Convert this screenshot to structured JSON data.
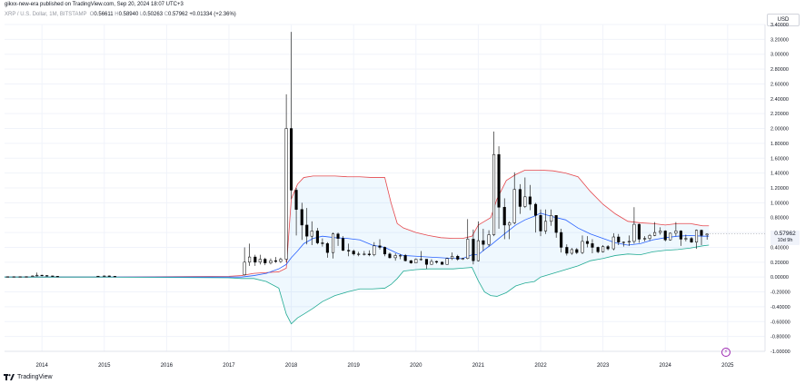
{
  "header": {
    "published": "gikxx-new-era published on TradingView.com, Sep 20, 2024 18:07 UTC+3",
    "symbol": "XRP / U.S. Dollar, 1M, BITSTAMP",
    "o_value": "0.56611",
    "h_value": "0.58940",
    "l_value": "0.50263",
    "c_value": "0.57962",
    "change": "+0.01334 (+2.36%)"
  },
  "currency_button": "USD",
  "price_label": {
    "price": "0.57962",
    "countdown": "10d 9h"
  },
  "footer": {
    "brand": "TradingView"
  },
  "icons": {
    "logo": "tradingview-logo-icon",
    "flash": "lightning-icon"
  },
  "colors": {
    "up_fill": "#ffffff",
    "down_fill": "#000000",
    "candle_border": "#000000",
    "upper_band": "#e5484d",
    "middle_band": "#2962ff",
    "lower_band": "#22ab94",
    "band_fill": "#2196f3",
    "grid": "#f0f3fa",
    "axis_text": "#131722"
  },
  "chart_data": {
    "type": "candlestick",
    "title": "",
    "xlabel": "",
    "ylabel": "",
    "ylim": [
      -1.0,
      3.4
    ],
    "y_ticks": [
      "3.40000",
      "3.20000",
      "3.00000",
      "2.80000",
      "2.60000",
      "2.40000",
      "2.20000",
      "2.00000",
      "1.80000",
      "1.60000",
      "1.40000",
      "1.20000",
      "1.00000",
      "0.80000",
      "0.60000",
      "0.40000",
      "0.20000",
      "0.00000",
      "-0.20000",
      "-0.40000",
      "-0.60000",
      "-0.80000",
      "-1.00000"
    ],
    "x_ticks": [
      "2014",
      "2015",
      "2016",
      "2017",
      "2018",
      "2019",
      "2020",
      "2021",
      "2022",
      "2023",
      "2024",
      "2025"
    ],
    "x_tick_years": [
      2014,
      2015,
      2016,
      2017,
      2018,
      2019,
      2020,
      2021,
      2022,
      2023,
      2024,
      2025
    ],
    "xlim": [
      2013.4,
      2025.6
    ],
    "grid": true,
    "indicator": "Bollinger Bands",
    "candles": [
      {
        "t": 2013.45,
        "o": 0.005,
        "h": 0.006,
        "l": 0.004,
        "c": 0.005
      },
      {
        "t": 2013.55,
        "o": 0.005,
        "h": 0.006,
        "l": 0.004,
        "c": 0.005
      },
      {
        "t": 2013.65,
        "o": 0.005,
        "h": 0.006,
        "l": 0.004,
        "c": 0.005
      },
      {
        "t": 2013.75,
        "o": 0.005,
        "h": 0.01,
        "l": 0.004,
        "c": 0.006
      },
      {
        "t": 2013.85,
        "o": 0.006,
        "h": 0.02,
        "l": 0.005,
        "c": 0.015
      },
      {
        "t": 2013.92,
        "o": 0.015,
        "h": 0.06,
        "l": 0.012,
        "c": 0.025
      },
      {
        "t": 2014.0,
        "o": 0.025,
        "h": 0.03,
        "l": 0.012,
        "c": 0.02
      },
      {
        "t": 2014.08,
        "o": 0.02,
        "h": 0.025,
        "l": 0.012,
        "c": 0.015
      },
      {
        "t": 2014.17,
        "o": 0.015,
        "h": 0.018,
        "l": 0.008,
        "c": 0.01
      },
      {
        "t": 2014.25,
        "o": 0.01,
        "h": 0.012,
        "l": 0.005,
        "c": 0.006
      },
      {
        "t": 2014.9,
        "o": 0.01,
        "h": 0.015,
        "l": 0.007,
        "c": 0.012
      },
      {
        "t": 2015.0,
        "o": 0.012,
        "h": 0.02,
        "l": 0.008,
        "c": 0.015
      },
      {
        "t": 2015.08,
        "o": 0.015,
        "h": 0.02,
        "l": 0.008,
        "c": 0.01
      },
      {
        "t": 2015.17,
        "o": 0.01,
        "h": 0.012,
        "l": 0.007,
        "c": 0.008
      },
      {
        "t": 2017.25,
        "o": 0.03,
        "h": 0.4,
        "l": 0.02,
        "c": 0.2
      },
      {
        "t": 2017.33,
        "o": 0.2,
        "h": 0.45,
        "l": 0.15,
        "c": 0.27
      },
      {
        "t": 2017.42,
        "o": 0.27,
        "h": 0.3,
        "l": 0.15,
        "c": 0.2
      },
      {
        "t": 2017.5,
        "o": 0.2,
        "h": 0.3,
        "l": 0.17,
        "c": 0.24
      },
      {
        "t": 2017.58,
        "o": 0.24,
        "h": 0.26,
        "l": 0.16,
        "c": 0.19
      },
      {
        "t": 2017.67,
        "o": 0.19,
        "h": 0.25,
        "l": 0.17,
        "c": 0.22
      },
      {
        "t": 2017.75,
        "o": 0.22,
        "h": 0.27,
        "l": 0.19,
        "c": 0.21
      },
      {
        "t": 2017.83,
        "o": 0.21,
        "h": 0.26,
        "l": 0.19,
        "c": 0.24
      },
      {
        "t": 2017.92,
        "o": 0.24,
        "h": 2.46,
        "l": 0.2,
        "c": 2.0
      },
      {
        "t": 2018.0,
        "o": 2.0,
        "h": 3.3,
        "l": 1.05,
        "c": 1.17
      },
      {
        "t": 2018.08,
        "o": 1.17,
        "h": 1.2,
        "l": 0.56,
        "c": 0.91
      },
      {
        "t": 2018.17,
        "o": 0.91,
        "h": 1.0,
        "l": 0.5,
        "c": 0.7
      },
      {
        "t": 2018.25,
        "o": 0.7,
        "h": 0.93,
        "l": 0.44,
        "c": 0.55
      },
      {
        "t": 2018.33,
        "o": 0.55,
        "h": 0.75,
        "l": 0.43,
        "c": 0.62
      },
      {
        "t": 2018.42,
        "o": 0.62,
        "h": 0.66,
        "l": 0.44,
        "c": 0.46
      },
      {
        "t": 2018.5,
        "o": 0.46,
        "h": 0.52,
        "l": 0.41,
        "c": 0.45
      },
      {
        "t": 2018.58,
        "o": 0.45,
        "h": 0.47,
        "l": 0.26,
        "c": 0.33
      },
      {
        "t": 2018.67,
        "o": 0.33,
        "h": 0.6,
        "l": 0.25,
        "c": 0.58
      },
      {
        "t": 2018.75,
        "o": 0.58,
        "h": 0.6,
        "l": 0.42,
        "c": 0.52
      },
      {
        "t": 2018.83,
        "o": 0.52,
        "h": 0.55,
        "l": 0.35,
        "c": 0.36
      },
      {
        "t": 2018.92,
        "o": 0.36,
        "h": 0.45,
        "l": 0.28,
        "c": 0.35
      },
      {
        "t": 2019.0,
        "o": 0.35,
        "h": 0.37,
        "l": 0.29,
        "c": 0.31
      },
      {
        "t": 2019.08,
        "o": 0.31,
        "h": 0.34,
        "l": 0.28,
        "c": 0.31
      },
      {
        "t": 2019.17,
        "o": 0.31,
        "h": 0.35,
        "l": 0.29,
        "c": 0.31
      },
      {
        "t": 2019.25,
        "o": 0.31,
        "h": 0.36,
        "l": 0.28,
        "c": 0.3
      },
      {
        "t": 2019.33,
        "o": 0.3,
        "h": 0.47,
        "l": 0.28,
        "c": 0.42
      },
      {
        "t": 2019.42,
        "o": 0.42,
        "h": 0.51,
        "l": 0.37,
        "c": 0.4
      },
      {
        "t": 2019.5,
        "o": 0.4,
        "h": 0.41,
        "l": 0.28,
        "c": 0.31
      },
      {
        "t": 2019.58,
        "o": 0.31,
        "h": 0.33,
        "l": 0.25,
        "c": 0.26
      },
      {
        "t": 2019.67,
        "o": 0.26,
        "h": 0.32,
        "l": 0.22,
        "c": 0.29
      },
      {
        "t": 2019.75,
        "o": 0.29,
        "h": 0.31,
        "l": 0.24,
        "c": 0.29
      },
      {
        "t": 2019.83,
        "o": 0.29,
        "h": 0.31,
        "l": 0.21,
        "c": 0.22
      },
      {
        "t": 2019.92,
        "o": 0.22,
        "h": 0.23,
        "l": 0.18,
        "c": 0.19
      },
      {
        "t": 2020.0,
        "o": 0.19,
        "h": 0.25,
        "l": 0.19,
        "c": 0.24
      },
      {
        "t": 2020.08,
        "o": 0.24,
        "h": 0.35,
        "l": 0.22,
        "c": 0.24
      },
      {
        "t": 2020.17,
        "o": 0.24,
        "h": 0.24,
        "l": 0.11,
        "c": 0.17
      },
      {
        "t": 2020.25,
        "o": 0.17,
        "h": 0.24,
        "l": 0.17,
        "c": 0.21
      },
      {
        "t": 2020.33,
        "o": 0.21,
        "h": 0.22,
        "l": 0.18,
        "c": 0.2
      },
      {
        "t": 2020.42,
        "o": 0.2,
        "h": 0.21,
        "l": 0.17,
        "c": 0.17
      },
      {
        "t": 2020.5,
        "o": 0.17,
        "h": 0.26,
        "l": 0.17,
        "c": 0.25
      },
      {
        "t": 2020.58,
        "o": 0.25,
        "h": 0.33,
        "l": 0.23,
        "c": 0.28
      },
      {
        "t": 2020.67,
        "o": 0.28,
        "h": 0.3,
        "l": 0.22,
        "c": 0.24
      },
      {
        "t": 2020.75,
        "o": 0.24,
        "h": 0.26,
        "l": 0.23,
        "c": 0.25
      },
      {
        "t": 2020.83,
        "o": 0.25,
        "h": 0.78,
        "l": 0.24,
        "c": 0.51
      },
      {
        "t": 2020.92,
        "o": 0.51,
        "h": 0.64,
        "l": 0.17,
        "c": 0.22
      },
      {
        "t": 2021.0,
        "o": 0.22,
        "h": 0.75,
        "l": 0.21,
        "c": 0.49
      },
      {
        "t": 2021.08,
        "o": 0.49,
        "h": 0.65,
        "l": 0.35,
        "c": 0.44
      },
      {
        "t": 2021.17,
        "o": 0.44,
        "h": 0.63,
        "l": 0.41,
        "c": 0.57
      },
      {
        "t": 2021.25,
        "o": 0.57,
        "h": 1.96,
        "l": 0.55,
        "c": 1.65
      },
      {
        "t": 2021.33,
        "o": 1.65,
        "h": 1.76,
        "l": 0.65,
        "c": 0.94
      },
      {
        "t": 2021.42,
        "o": 0.94,
        "h": 1.06,
        "l": 0.51,
        "c": 0.7
      },
      {
        "t": 2021.5,
        "o": 0.7,
        "h": 0.75,
        "l": 0.51,
        "c": 0.73
      },
      {
        "t": 2021.58,
        "o": 0.73,
        "h": 1.41,
        "l": 0.71,
        "c": 1.18
      },
      {
        "t": 2021.67,
        "o": 1.18,
        "h": 1.25,
        "l": 0.85,
        "c": 0.95
      },
      {
        "t": 2021.75,
        "o": 0.95,
        "h": 1.34,
        "l": 0.93,
        "c": 1.08
      },
      {
        "t": 2021.83,
        "o": 1.08,
        "h": 1.24,
        "l": 0.9,
        "c": 0.98
      },
      {
        "t": 2021.92,
        "o": 0.98,
        "h": 1.0,
        "l": 0.6,
        "c": 0.83
      },
      {
        "t": 2022.0,
        "o": 0.83,
        "h": 0.91,
        "l": 0.55,
        "c": 0.62
      },
      {
        "t": 2022.08,
        "o": 0.62,
        "h": 0.91,
        "l": 0.58,
        "c": 0.75
      },
      {
        "t": 2022.17,
        "o": 0.75,
        "h": 0.91,
        "l": 0.69,
        "c": 0.83
      },
      {
        "t": 2022.25,
        "o": 0.83,
        "h": 0.83,
        "l": 0.53,
        "c": 0.6
      },
      {
        "t": 2022.33,
        "o": 0.6,
        "h": 0.65,
        "l": 0.33,
        "c": 0.4
      },
      {
        "t": 2022.42,
        "o": 0.4,
        "h": 0.44,
        "l": 0.29,
        "c": 0.32
      },
      {
        "t": 2022.5,
        "o": 0.32,
        "h": 0.39,
        "l": 0.3,
        "c": 0.37
      },
      {
        "t": 2022.58,
        "o": 0.37,
        "h": 0.39,
        "l": 0.31,
        "c": 0.33
      },
      {
        "t": 2022.67,
        "o": 0.33,
        "h": 0.56,
        "l": 0.31,
        "c": 0.48
      },
      {
        "t": 2022.75,
        "o": 0.48,
        "h": 0.55,
        "l": 0.4,
        "c": 0.45
      },
      {
        "t": 2022.83,
        "o": 0.45,
        "h": 0.51,
        "l": 0.32,
        "c": 0.4
      },
      {
        "t": 2022.92,
        "o": 0.4,
        "h": 0.41,
        "l": 0.32,
        "c": 0.34
      },
      {
        "t": 2023.0,
        "o": 0.34,
        "h": 0.43,
        "l": 0.33,
        "c": 0.41
      },
      {
        "t": 2023.08,
        "o": 0.41,
        "h": 0.43,
        "l": 0.36,
        "c": 0.38
      },
      {
        "t": 2023.17,
        "o": 0.38,
        "h": 0.59,
        "l": 0.36,
        "c": 0.54
      },
      {
        "t": 2023.25,
        "o": 0.54,
        "h": 0.58,
        "l": 0.43,
        "c": 0.47
      },
      {
        "t": 2023.33,
        "o": 0.47,
        "h": 0.48,
        "l": 0.41,
        "c": 0.47
      },
      {
        "t": 2023.42,
        "o": 0.47,
        "h": 0.56,
        "l": 0.42,
        "c": 0.48
      },
      {
        "t": 2023.5,
        "o": 0.48,
        "h": 0.94,
        "l": 0.45,
        "c": 0.71
      },
      {
        "t": 2023.58,
        "o": 0.71,
        "h": 0.72,
        "l": 0.46,
        "c": 0.51
      },
      {
        "t": 2023.67,
        "o": 0.51,
        "h": 0.55,
        "l": 0.48,
        "c": 0.52
      },
      {
        "t": 2023.75,
        "o": 0.52,
        "h": 0.58,
        "l": 0.49,
        "c": 0.56
      },
      {
        "t": 2023.83,
        "o": 0.56,
        "h": 0.74,
        "l": 0.55,
        "c": 0.6
      },
      {
        "t": 2023.92,
        "o": 0.6,
        "h": 0.67,
        "l": 0.57,
        "c": 0.62
      },
      {
        "t": 2024.0,
        "o": 0.62,
        "h": 0.63,
        "l": 0.48,
        "c": 0.5
      },
      {
        "t": 2024.08,
        "o": 0.5,
        "h": 0.6,
        "l": 0.49,
        "c": 0.59
      },
      {
        "t": 2024.17,
        "o": 0.59,
        "h": 0.74,
        "l": 0.55,
        "c": 0.62
      },
      {
        "t": 2024.25,
        "o": 0.62,
        "h": 0.63,
        "l": 0.42,
        "c": 0.51
      },
      {
        "t": 2024.33,
        "o": 0.51,
        "h": 0.57,
        "l": 0.48,
        "c": 0.52
      },
      {
        "t": 2024.42,
        "o": 0.52,
        "h": 0.54,
        "l": 0.46,
        "c": 0.47
      },
      {
        "t": 2024.5,
        "o": 0.47,
        "h": 0.64,
        "l": 0.38,
        "c": 0.63
      },
      {
        "t": 2024.58,
        "o": 0.63,
        "h": 0.64,
        "l": 0.43,
        "c": 0.56
      },
      {
        "t": 2024.67,
        "o": 0.56611,
        "h": 0.5894,
        "l": 0.50263,
        "c": 0.57962
      }
    ],
    "bands": {
      "t": [
        2013.4,
        2015.0,
        2017.0,
        2017.2,
        2017.4,
        2017.6,
        2017.8,
        2017.92,
        2018.0,
        2018.1,
        2018.2,
        2018.35,
        2018.5,
        2018.7,
        2018.9,
        2019.1,
        2019.3,
        2019.5,
        2019.6,
        2019.7,
        2019.8,
        2020.0,
        2020.2,
        2020.4,
        2020.6,
        2020.75,
        2020.9,
        2021.0,
        2021.1,
        2021.2,
        2021.3,
        2021.45,
        2021.6,
        2021.75,
        2021.9,
        2022.0,
        2022.2,
        2022.4,
        2022.6,
        2022.8,
        2023.0,
        2023.2,
        2023.4,
        2023.6,
        2023.8,
        2024.0,
        2024.2,
        2024.4,
        2024.6,
        2024.7
      ],
      "upper": [
        0.0,
        0.0,
        0.01,
        0.02,
        0.05,
        0.06,
        0.07,
        0.12,
        1.05,
        1.25,
        1.34,
        1.36,
        1.36,
        1.36,
        1.35,
        1.35,
        1.34,
        1.34,
        1.0,
        0.72,
        0.66,
        0.6,
        0.56,
        0.53,
        0.52,
        0.52,
        0.55,
        0.7,
        0.75,
        0.8,
        1.05,
        1.3,
        1.38,
        1.44,
        1.44,
        1.44,
        1.43,
        1.4,
        1.35,
        1.15,
        0.98,
        0.85,
        0.75,
        0.73,
        0.72,
        0.7,
        0.72,
        0.72,
        0.69,
        0.69
      ],
      "mid": [
        0.0,
        0.0,
        0.0,
        0.0,
        0.02,
        0.05,
        0.11,
        0.17,
        0.26,
        0.35,
        0.45,
        0.52,
        0.55,
        0.53,
        0.52,
        0.5,
        0.43,
        0.4,
        0.36,
        0.32,
        0.29,
        0.28,
        0.27,
        0.26,
        0.25,
        0.25,
        0.3,
        0.3,
        0.37,
        0.43,
        0.5,
        0.6,
        0.7,
        0.77,
        0.82,
        0.86,
        0.81,
        0.77,
        0.66,
        0.58,
        0.52,
        0.46,
        0.43,
        0.45,
        0.5,
        0.53,
        0.55,
        0.56,
        0.55,
        0.55
      ],
      "lower": [
        0.0,
        0.0,
        -0.01,
        -0.02,
        -0.02,
        -0.06,
        -0.15,
        -0.5,
        -0.63,
        -0.55,
        -0.5,
        -0.42,
        -0.33,
        -0.25,
        -0.2,
        -0.16,
        -0.16,
        -0.15,
        -0.1,
        -0.02,
        0.08,
        0.1,
        0.11,
        0.11,
        0.11,
        0.12,
        0.13,
        -0.05,
        -0.2,
        -0.25,
        -0.26,
        -0.21,
        -0.12,
        -0.08,
        -0.06,
        0.0,
        0.05,
        0.1,
        0.15,
        0.22,
        0.25,
        0.29,
        0.31,
        0.3,
        0.34,
        0.36,
        0.37,
        0.39,
        0.42,
        0.43
      ]
    },
    "last_price": 0.57962
  }
}
